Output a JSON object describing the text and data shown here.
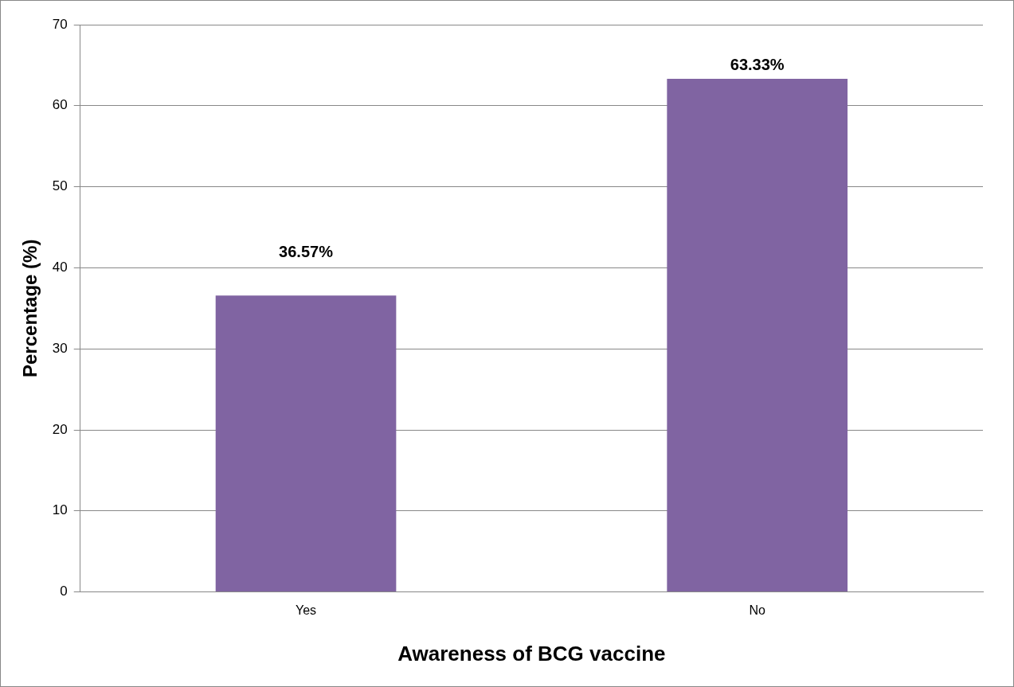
{
  "chart_data": {
    "type": "bar",
    "xlabel": "Awareness of BCG vaccine",
    "ylabel": "Percentage (%)",
    "categories": [
      "Yes",
      "No"
    ],
    "values": [
      36.57,
      63.33
    ],
    "color": "#8064a2",
    "value_labels": [
      "36.57%",
      "63.33%"
    ],
    "ylim": [
      0,
      70
    ],
    "yticks": [
      0,
      10,
      20,
      30,
      40,
      50,
      60,
      70
    ],
    "grid": "y"
  }
}
